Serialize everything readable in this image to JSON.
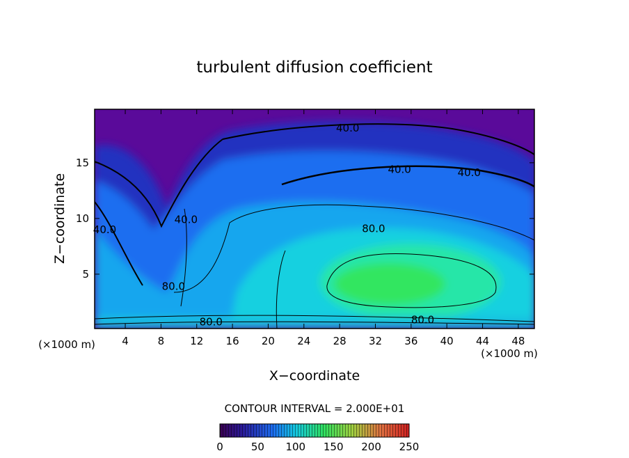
{
  "chart_data": {
    "type": "contour",
    "title": "turbulent diffusion coefficient",
    "xlabel": "X−coordinate",
    "ylabel": "Z−coordinate",
    "x_unit": "(×1000 m)",
    "x_unit_right": "(×1000 m)",
    "xlim": [
      0.57,
      49.8
    ],
    "ylim": [
      0.12,
      19.8
    ],
    "xticks": [
      4,
      8,
      12,
      16,
      20,
      24,
      28,
      32,
      36,
      40,
      44,
      48
    ],
    "yticks": [
      5,
      10,
      15
    ],
    "contour_labels": [
      {
        "x": 28.9,
        "y": 18.1,
        "value": 40,
        "label": "40.0"
      },
      {
        "x": 34.7,
        "y": 14.4,
        "value": 40,
        "label": "40.0"
      },
      {
        "x": 42.5,
        "y": 14.1,
        "value": 40,
        "label": "40.0"
      },
      {
        "x": 31.8,
        "y": 9.1,
        "value": 80,
        "label": "80.0"
      },
      {
        "x": 1.7,
        "y": 9.0,
        "value": 40,
        "label": "40.0"
      },
      {
        "x": 10.8,
        "y": 9.9,
        "value": 40,
        "label": "40.0"
      },
      {
        "x": 9.4,
        "y": 3.9,
        "value": 80,
        "label": "80.0"
      },
      {
        "x": 13.6,
        "y": 0.7,
        "value": 80,
        "label": "80.0"
      },
      {
        "x": 37.3,
        "y": 0.9,
        "value": 80,
        "label": "80.0"
      }
    ],
    "contour_interval_text": "CONTOUR INTERVAL = 2.000E+01",
    "colorbar": {
      "lim": [
        0,
        250
      ],
      "ticks": [
        0,
        50,
        100,
        150,
        200,
        250
      ]
    }
  }
}
